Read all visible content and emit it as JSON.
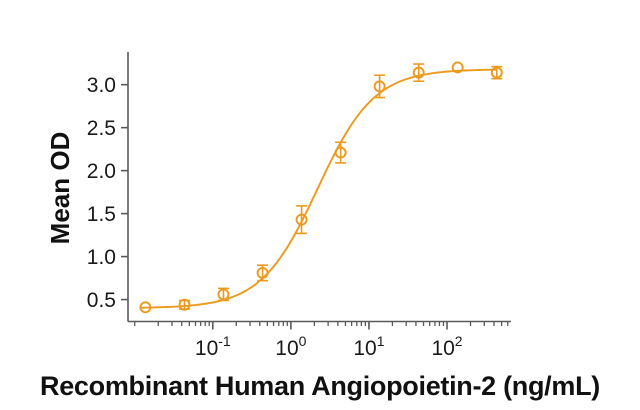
{
  "figure": {
    "background_color": "#ffffff",
    "axis_color": "#5a5a5a",
    "text_color": "#1a1a1a"
  },
  "chart_data": {
    "type": "line",
    "subtype": "dose-response-curve-with-error-bars",
    "title": "",
    "xlabel": "Recombinant Human Angiopoietin-2 (ng/mL)",
    "ylabel": "Mean OD",
    "x_scale": "log10",
    "grid": false,
    "legend": false,
    "xlim": [
      0.0082,
      660
    ],
    "ylim": [
      0.245,
      3.38
    ],
    "x_ticks": [
      {
        "base": "10",
        "exp": "-1",
        "value": 0.1
      },
      {
        "base": "10",
        "exp": "0",
        "value": 1
      },
      {
        "base": "10",
        "exp": "1",
        "value": 10
      },
      {
        "base": "10",
        "exp": "2",
        "value": 100
      }
    ],
    "y_ticks": [
      {
        "label": "0.5",
        "value": 0.5
      },
      {
        "label": "1.0",
        "value": 1.0
      },
      {
        "label": "1.5",
        "value": 1.5
      },
      {
        "label": "2.0",
        "value": 2.0
      },
      {
        "label": "2.5",
        "value": 2.5
      },
      {
        "label": "3.0",
        "value": 3.0
      }
    ],
    "series": [
      {
        "name": "Recombinant Human Angiopoietin-2",
        "color": "#EC9A1E",
        "marker": "open-circle",
        "points": [
          {
            "x": 0.0137,
            "y": 0.41,
            "err": 0
          },
          {
            "x": 0.0434,
            "y": 0.44,
            "err": 0.05
          },
          {
            "x": 0.137,
            "y": 0.56,
            "err": 0.07
          },
          {
            "x": 0.434,
            "y": 0.81,
            "err": 0.09
          },
          {
            "x": 1.37,
            "y": 1.43,
            "err": 0.16
          },
          {
            "x": 4.34,
            "y": 2.21,
            "err": 0.12
          },
          {
            "x": 13.7,
            "y": 2.98,
            "err": 0.13
          },
          {
            "x": 43.4,
            "y": 3.14,
            "err": 0.1
          },
          {
            "x": 137,
            "y": 3.2,
            "err": 0
          },
          {
            "x": 434,
            "y": 3.14,
            "err": 0.07
          }
        ],
        "fit_4pl": {
          "bottom": 0.4,
          "top": 3.18,
          "ec50": 2.2,
          "hill": 1.2,
          "x_start": 0.0118,
          "x_end": 440
        }
      }
    ]
  }
}
